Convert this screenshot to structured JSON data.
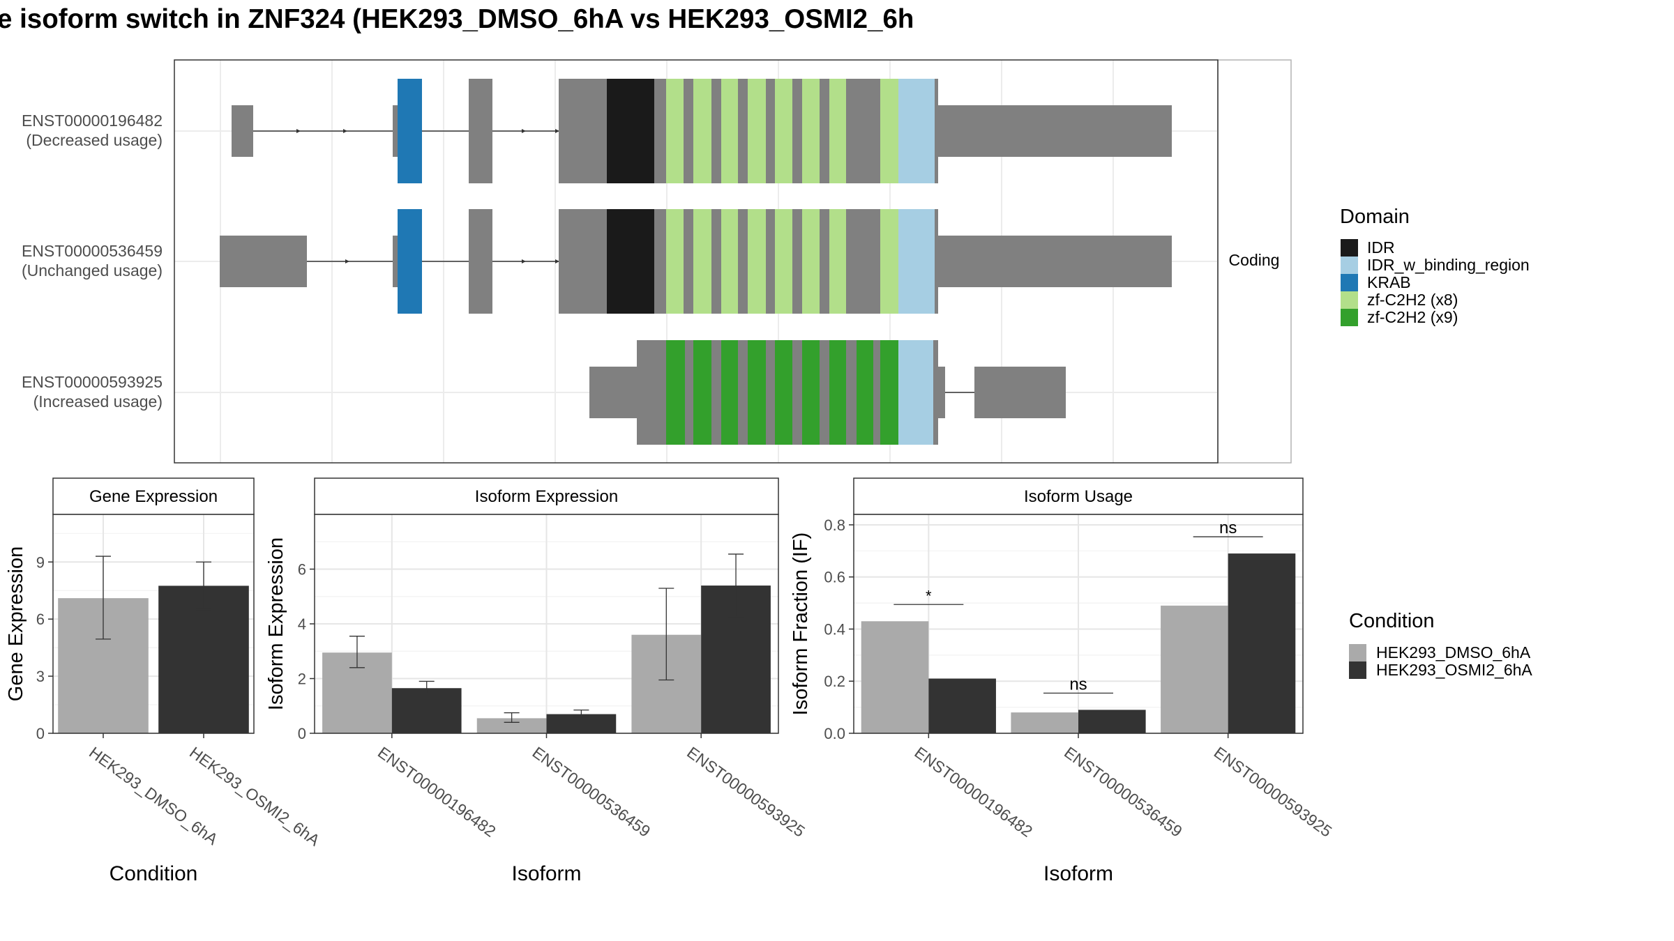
{
  "title": "e isoform switch in ZNF324 (HEK293_DMSO_6hA vs HEK293_OSMI2_6h",
  "structure": {
    "strip_label": "Coding",
    "transcripts": [
      {
        "id": "ENST00000196482",
        "status": "(Decreased usage)"
      },
      {
        "id": "ENST00000536459",
        "status": "(Unchanged usage)"
      },
      {
        "id": "ENST00000593925",
        "status": "(Increased usage)"
      }
    ],
    "domain_legend": {
      "title": "Domain",
      "items": [
        {
          "label": "IDR",
          "color": "#1a1a1a"
        },
        {
          "label": "IDR_w_binding_region",
          "color": "#a6cee3"
        },
        {
          "label": "KRAB",
          "color": "#1f78b4"
        },
        {
          "label": "zf-C2H2 (x8)",
          "color": "#b2df8a"
        },
        {
          "label": "zf-C2H2 (x9)",
          "color": "#33a02c"
        }
      ]
    }
  },
  "conditions": [
    {
      "label": "HEK293_DMSO_6hA",
      "color": "#aaaaaa"
    },
    {
      "label": "HEK293_OSMI2_6hA",
      "color": "#333333"
    }
  ],
  "condition_legend_title": "Condition",
  "chart_data": [
    {
      "type": "bar",
      "title": "Gene Expression",
      "xlabel": "Condition",
      "ylabel": "Gene Expression",
      "categories": [
        "HEK293_DMSO_6hA",
        "HEK293_OSMI2_6hA"
      ],
      "values": [
        7.1,
        7.75
      ],
      "error_low": [
        4.95,
        6.5
      ],
      "error_high": [
        9.3,
        9.0
      ],
      "ylim": [
        0,
        11.5
      ],
      "yticks": [
        0,
        3,
        6,
        9
      ]
    },
    {
      "type": "bar",
      "title": "Isoform Expression",
      "xlabel": "Isoform",
      "ylabel": "Isoform Expression",
      "categories": [
        "ENST00000196482",
        "ENST00000536459",
        "ENST00000593925"
      ],
      "series": [
        {
          "name": "HEK293_DMSO_6hA",
          "values": [
            2.95,
            0.55,
            3.6
          ],
          "error_low": [
            2.4,
            0.4,
            1.95
          ],
          "error_high": [
            3.55,
            0.75,
            5.3
          ]
        },
        {
          "name": "HEK293_OSMI2_6hA",
          "values": [
            1.65,
            0.7,
            5.4
          ],
          "error_low": [
            1.45,
            0.6,
            4.25
          ],
          "error_high": [
            1.9,
            0.85,
            6.55
          ]
        }
      ],
      "ylim": [
        0,
        8
      ],
      "yticks": [
        0,
        2,
        4,
        6
      ]
    },
    {
      "type": "bar",
      "title": "Isoform Usage",
      "xlabel": "Isoform",
      "ylabel": "Isoform Fraction (IF)",
      "categories": [
        "ENST00000196482",
        "ENST00000536459",
        "ENST00000593925"
      ],
      "series": [
        {
          "name": "HEK293_DMSO_6hA",
          "values": [
            0.43,
            0.08,
            0.49
          ]
        },
        {
          "name": "HEK293_OSMI2_6hA",
          "values": [
            0.21,
            0.09,
            0.69
          ]
        }
      ],
      "significance": [
        "*",
        "ns",
        "ns"
      ],
      "ylim": [
        0,
        0.84
      ],
      "yticks": [
        0.0,
        0.2,
        0.4,
        0.6,
        0.8
      ],
      "ytick_labels": [
        "0.0",
        "0.2",
        "0.4",
        "0.6",
        "0.8"
      ]
    }
  ]
}
